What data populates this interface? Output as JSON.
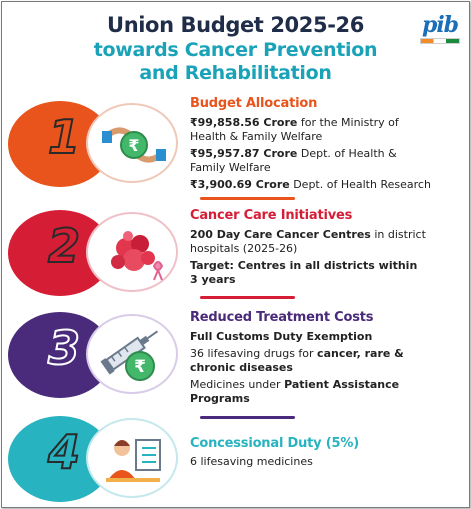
{
  "header": {
    "title_line1": "Union Budget 2025-26",
    "title_line2a": "towards Cancer Prevention",
    "title_line2b": "and Rehabilitation",
    "logo_text": "pib"
  },
  "colors": {
    "navy": "#1f2d48",
    "teal": "#1aa3b8",
    "orange": "#e8541c",
    "red": "#d51e36",
    "purple": "#4a2a7a",
    "turquoise": "#27b3bf"
  },
  "sections": [
    {
      "number": "1",
      "title": "Budget Allocation",
      "icon": "rupee-hands-icon",
      "lines": [
        {
          "bold": "₹99,858.56 Crore",
          "rest": " for the Ministry of"
        },
        {
          "bold": "",
          "rest": "Health & Family Welfare"
        },
        {
          "bold": "₹95,957.87 Crore",
          "rest": " Dept. of Health &"
        },
        {
          "bold": "",
          "rest": "Family Welfare"
        },
        {
          "bold": "₹3,900.69 Crore",
          "rest": " Dept. of Health Research"
        }
      ]
    },
    {
      "number": "2",
      "title": "Cancer Care Initiatives",
      "icon": "cancer-cells-icon",
      "lines": [
        {
          "bold": "200 Day Care Cancer Centres",
          "rest": " in district"
        },
        {
          "bold": "",
          "rest": "hospitals (2025-26)"
        },
        {
          "bold": "Target: Centres in all districts within",
          "rest": ""
        },
        {
          "bold": "3 years",
          "rest": ""
        }
      ]
    },
    {
      "number": "3",
      "title": "Reduced Treatment Costs",
      "icon": "syringe-rupee-icon",
      "lines": [
        {
          "bold": "Full Customs Duty Exemption",
          "rest": ""
        },
        {
          "pre": "36 lifesaving drugs for ",
          "bold": "cancer, rare &",
          "rest": ""
        },
        {
          "bold": "chronic diseases",
          "rest": ""
        },
        {
          "pre": "Medicines under ",
          "bold": "Patient Assistance",
          "rest": ""
        },
        {
          "bold": "Programs",
          "rest": ""
        }
      ]
    },
    {
      "number": "4",
      "title": "Concessional Duty (5%)",
      "icon": "doctor-checklist-icon",
      "lines": [
        {
          "bold": "",
          "rest": "6 lifesaving medicines"
        }
      ]
    }
  ]
}
